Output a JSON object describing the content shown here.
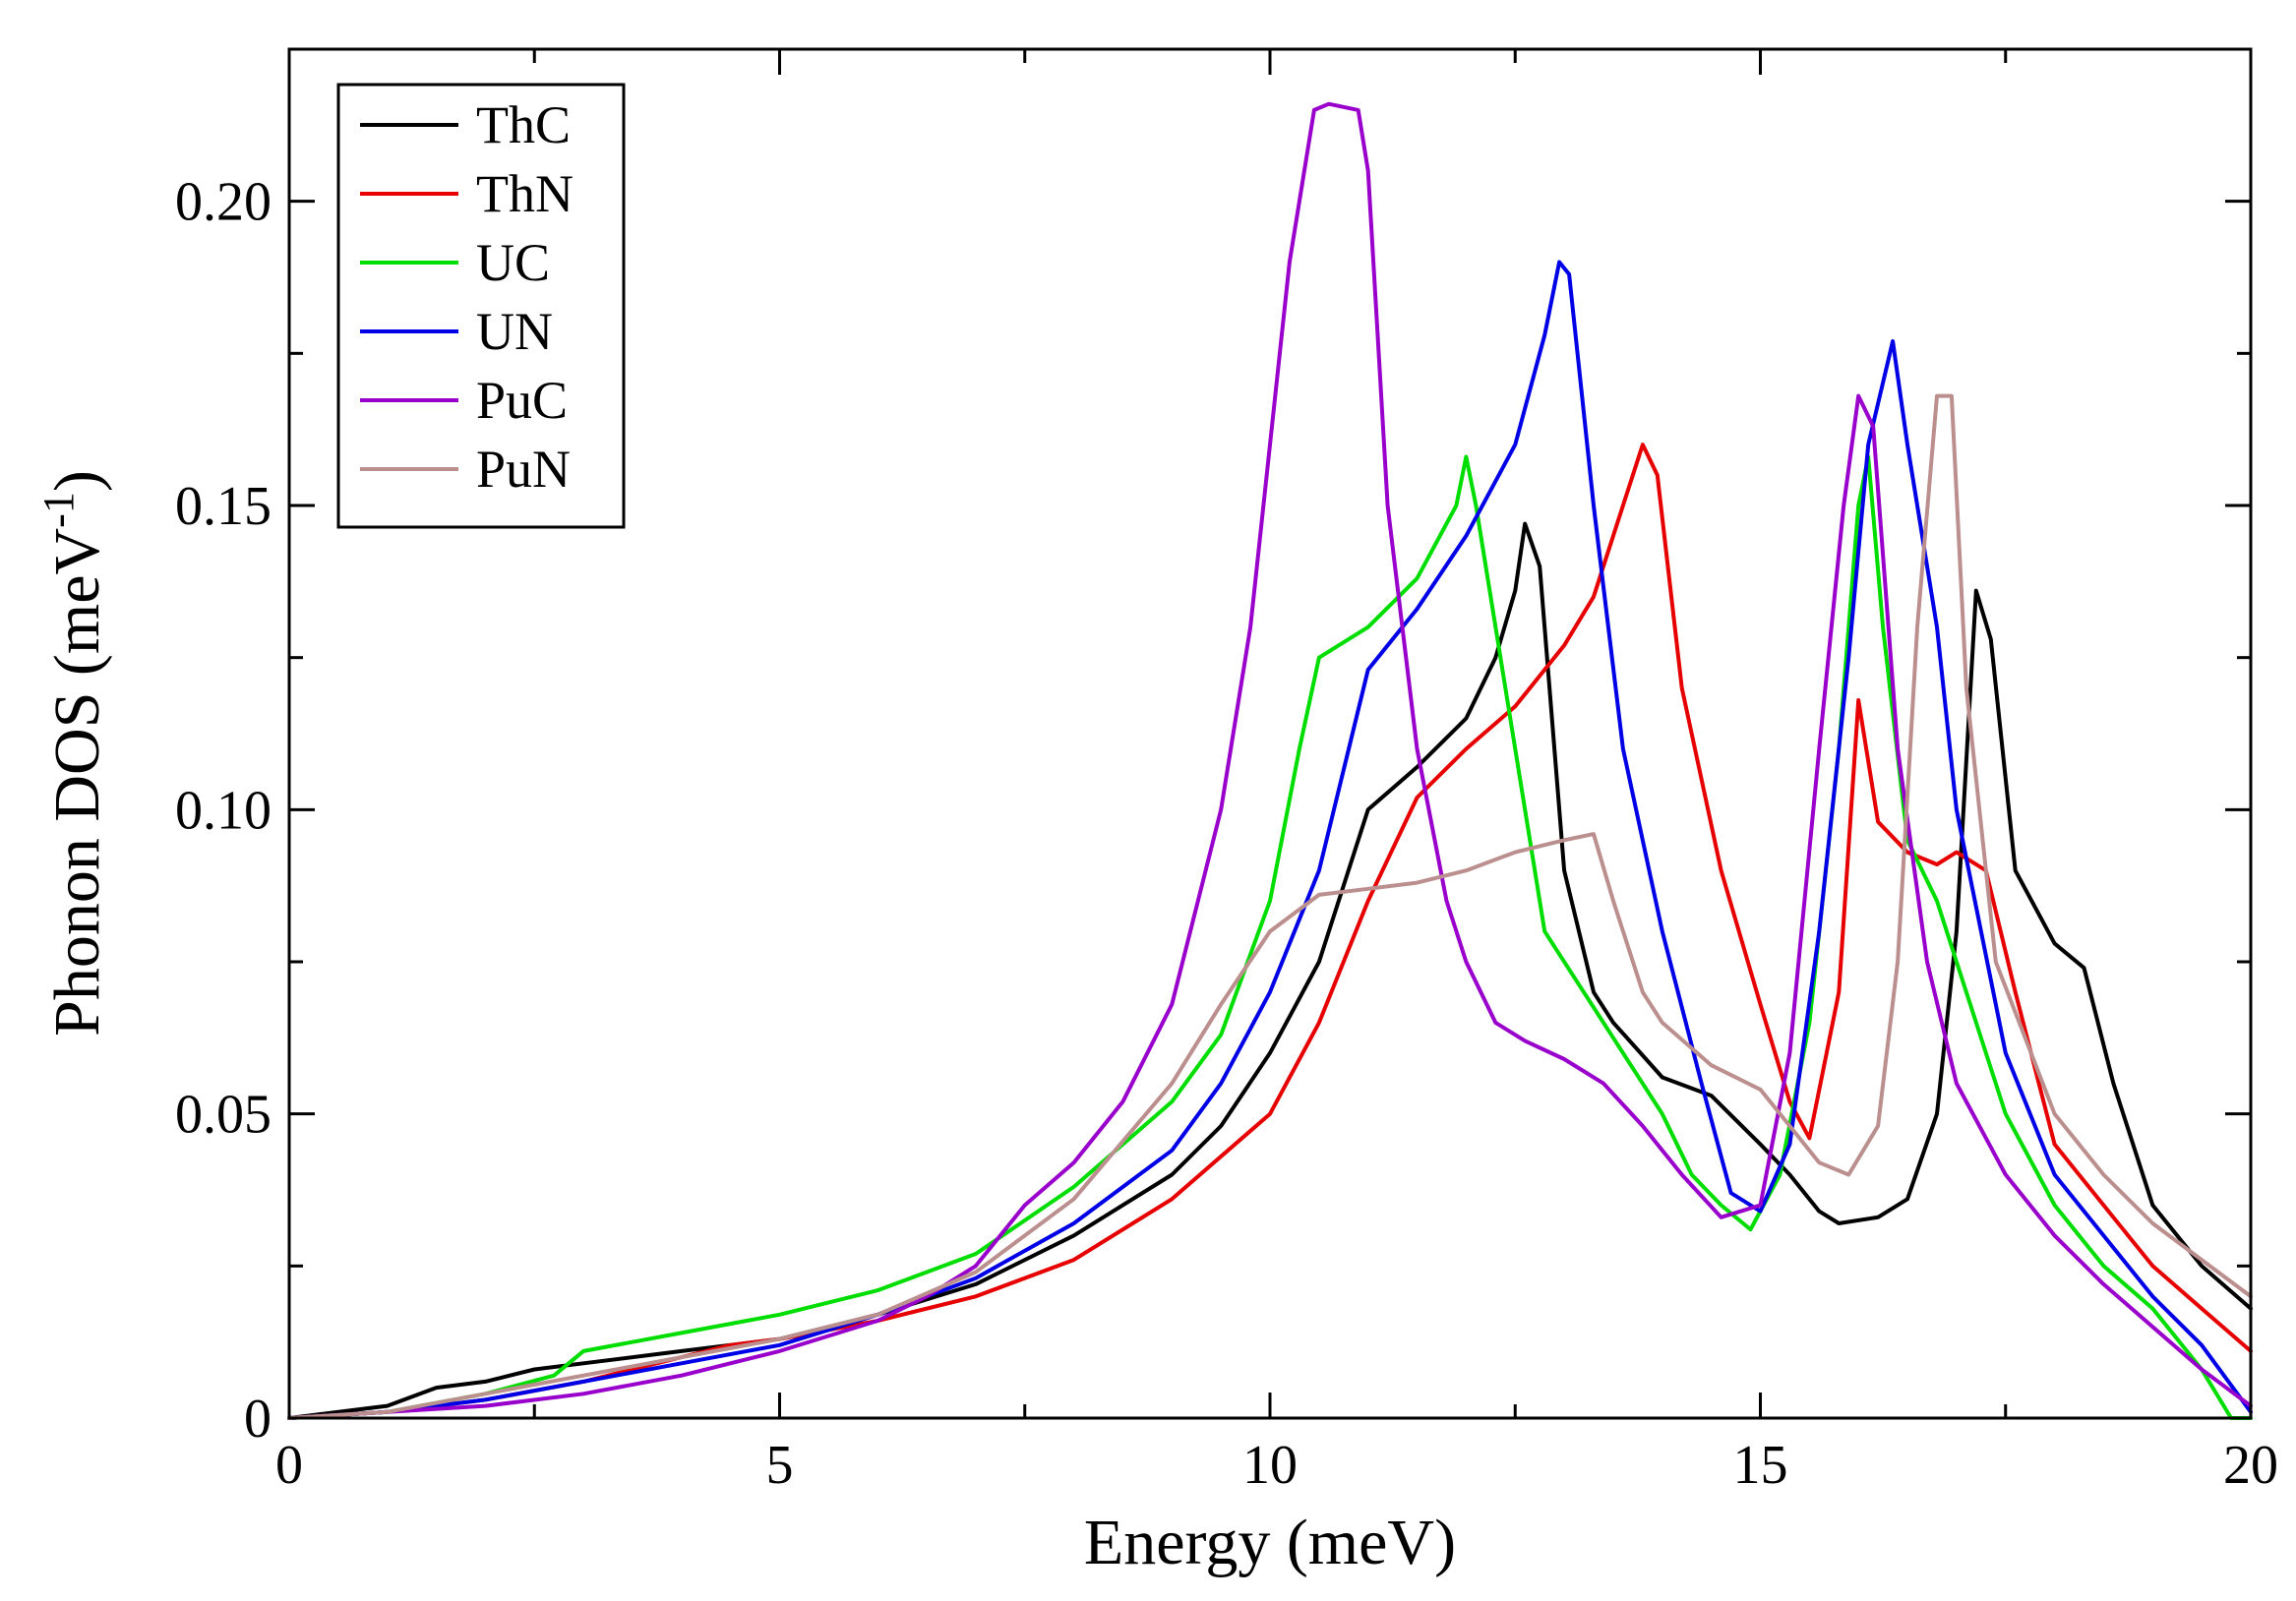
{
  "chart_data": {
    "type": "line",
    "title": "",
    "xlabel": "Energy (meV)",
    "ylabel": {
      "main": "Phonon DOS (meV",
      "superscript": "-1",
      "close": ")"
    },
    "xlim": [
      0,
      20
    ],
    "ylim": [
      0,
      0.225
    ],
    "xticks": [
      {
        "value": 0,
        "label": "0"
      },
      {
        "value": 5,
        "label": "5"
      },
      {
        "value": 10,
        "label": "10"
      },
      {
        "value": 15,
        "label": "15"
      },
      {
        "value": 20,
        "label": "20"
      }
    ],
    "yticks": [
      {
        "value": 0,
        "label": "0"
      },
      {
        "value": 0.05,
        "label": "0.05"
      },
      {
        "value": 0.1,
        "label": "0.10"
      },
      {
        "value": 0.15,
        "label": "0.15"
      },
      {
        "value": 0.2,
        "label": "0.20"
      }
    ],
    "x_minor_step": 2.5,
    "y_minor_step": 0.025,
    "grid": false,
    "legend_position": "top-left",
    "series": [
      {
        "name": "ThC",
        "color": "#000000",
        "points": [
          [
            0,
            0
          ],
          [
            1,
            0.002
          ],
          [
            1.5,
            0.005
          ],
          [
            2,
            0.006
          ],
          [
            2.5,
            0.008
          ],
          [
            3,
            0.009
          ],
          [
            4,
            0.011
          ],
          [
            5,
            0.013
          ],
          [
            6,
            0.017
          ],
          [
            7,
            0.022
          ],
          [
            8,
            0.03
          ],
          [
            9,
            0.04
          ],
          [
            9.5,
            0.048
          ],
          [
            10,
            0.06
          ],
          [
            10.5,
            0.075
          ],
          [
            11,
            0.1
          ],
          [
            11.5,
            0.107
          ],
          [
            12,
            0.115
          ],
          [
            12.3,
            0.125
          ],
          [
            12.5,
            0.136
          ],
          [
            12.6,
            0.147
          ],
          [
            12.75,
            0.14
          ],
          [
            13,
            0.09
          ],
          [
            13.3,
            0.07
          ],
          [
            13.5,
            0.065
          ],
          [
            14,
            0.056
          ],
          [
            14.5,
            0.053
          ],
          [
            15,
            0.045
          ],
          [
            15.3,
            0.04
          ],
          [
            15.6,
            0.034
          ],
          [
            15.8,
            0.032
          ],
          [
            16.2,
            0.033
          ],
          [
            16.5,
            0.036
          ],
          [
            16.8,
            0.05
          ],
          [
            17,
            0.08
          ],
          [
            17.2,
            0.136
          ],
          [
            17.35,
            0.128
          ],
          [
            17.6,
            0.09
          ],
          [
            18,
            0.078
          ],
          [
            18.3,
            0.074
          ],
          [
            18.6,
            0.055
          ],
          [
            19,
            0.035
          ],
          [
            19.5,
            0.025
          ],
          [
            20,
            0.018
          ]
        ]
      },
      {
        "name": "ThN",
        "color": "#e60000",
        "points": [
          [
            0,
            0
          ],
          [
            1,
            0.001
          ],
          [
            2,
            0.003
          ],
          [
            3,
            0.006
          ],
          [
            4,
            0.01
          ],
          [
            4.5,
            0.012
          ],
          [
            5,
            0.013
          ],
          [
            6,
            0.016
          ],
          [
            7,
            0.02
          ],
          [
            8,
            0.026
          ],
          [
            9,
            0.036
          ],
          [
            10,
            0.05
          ],
          [
            10.5,
            0.065
          ],
          [
            11,
            0.085
          ],
          [
            11.5,
            0.102
          ],
          [
            12,
            0.11
          ],
          [
            12.5,
            0.117
          ],
          [
            13,
            0.127
          ],
          [
            13.3,
            0.135
          ],
          [
            13.6,
            0.15
          ],
          [
            13.8,
            0.16
          ],
          [
            13.95,
            0.155
          ],
          [
            14.2,
            0.12
          ],
          [
            14.6,
            0.09
          ],
          [
            15,
            0.068
          ],
          [
            15.3,
            0.052
          ],
          [
            15.5,
            0.046
          ],
          [
            15.8,
            0.07
          ],
          [
            16,
            0.118
          ],
          [
            16.2,
            0.098
          ],
          [
            16.5,
            0.093
          ],
          [
            16.8,
            0.091
          ],
          [
            17,
            0.093
          ],
          [
            17.3,
            0.09
          ],
          [
            17.6,
            0.07
          ],
          [
            18,
            0.045
          ],
          [
            18.5,
            0.035
          ],
          [
            19,
            0.025
          ],
          [
            19.5,
            0.018
          ],
          [
            20,
            0.011
          ]
        ]
      },
      {
        "name": "UC",
        "color": "#00dd00",
        "points": [
          [
            0,
            0
          ],
          [
            1,
            0.001
          ],
          [
            2,
            0.004
          ],
          [
            2.7,
            0.007
          ],
          [
            3,
            0.011
          ],
          [
            4,
            0.014
          ],
          [
            5,
            0.017
          ],
          [
            6,
            0.021
          ],
          [
            7,
            0.027
          ],
          [
            8,
            0.038
          ],
          [
            9,
            0.052
          ],
          [
            9.5,
            0.063
          ],
          [
            10,
            0.085
          ],
          [
            10.3,
            0.11
          ],
          [
            10.5,
            0.125
          ],
          [
            11,
            0.13
          ],
          [
            11.5,
            0.138
          ],
          [
            11.9,
            0.15
          ],
          [
            12,
            0.158
          ],
          [
            12.1,
            0.15
          ],
          [
            12.4,
            0.12
          ],
          [
            12.8,
            0.08
          ],
          [
            13.2,
            0.07
          ],
          [
            13.6,
            0.06
          ],
          [
            14,
            0.05
          ],
          [
            14.3,
            0.04
          ],
          [
            14.6,
            0.035
          ],
          [
            14.9,
            0.031
          ],
          [
            15.2,
            0.04
          ],
          [
            15.5,
            0.065
          ],
          [
            15.8,
            0.11
          ],
          [
            16,
            0.15
          ],
          [
            16.1,
            0.158
          ],
          [
            16.25,
            0.13
          ],
          [
            16.5,
            0.095
          ],
          [
            16.8,
            0.085
          ],
          [
            17,
            0.075
          ],
          [
            17.5,
            0.05
          ],
          [
            18,
            0.035
          ],
          [
            18.5,
            0.025
          ],
          [
            19,
            0.018
          ],
          [
            19.5,
            0.008
          ],
          [
            19.8,
            0
          ],
          [
            20,
            0
          ]
        ]
      },
      {
        "name": "UN",
        "color": "#0000e6",
        "points": [
          [
            0,
            0
          ],
          [
            1,
            0.001
          ],
          [
            2,
            0.003
          ],
          [
            3,
            0.006
          ],
          [
            4,
            0.009
          ],
          [
            5,
            0.012
          ],
          [
            6,
            0.017
          ],
          [
            7,
            0.023
          ],
          [
            8,
            0.032
          ],
          [
            9,
            0.044
          ],
          [
            9.5,
            0.055
          ],
          [
            10,
            0.07
          ],
          [
            10.5,
            0.09
          ],
          [
            11,
            0.123
          ],
          [
            11.5,
            0.133
          ],
          [
            12,
            0.145
          ],
          [
            12.5,
            0.16
          ],
          [
            12.8,
            0.178
          ],
          [
            12.95,
            0.19
          ],
          [
            13.05,
            0.188
          ],
          [
            13.3,
            0.15
          ],
          [
            13.6,
            0.11
          ],
          [
            14,
            0.08
          ],
          [
            14.4,
            0.055
          ],
          [
            14.7,
            0.037
          ],
          [
            15,
            0.034
          ],
          [
            15.3,
            0.045
          ],
          [
            15.6,
            0.08
          ],
          [
            15.9,
            0.125
          ],
          [
            16.1,
            0.16
          ],
          [
            16.35,
            0.177
          ],
          [
            16.5,
            0.16
          ],
          [
            16.8,
            0.13
          ],
          [
            17,
            0.1
          ],
          [
            17.5,
            0.06
          ],
          [
            18,
            0.04
          ],
          [
            18.5,
            0.03
          ],
          [
            19,
            0.02
          ],
          [
            19.5,
            0.012
          ],
          [
            20,
            0.001
          ]
        ]
      },
      {
        "name": "PuC",
        "color": "#9900cc",
        "points": [
          [
            0,
            0
          ],
          [
            1,
            0.001
          ],
          [
            2,
            0.002
          ],
          [
            3,
            0.004
          ],
          [
            4,
            0.007
          ],
          [
            5,
            0.011
          ],
          [
            6,
            0.016
          ],
          [
            6.5,
            0.02
          ],
          [
            7,
            0.025
          ],
          [
            7.5,
            0.035
          ],
          [
            8,
            0.042
          ],
          [
            8.5,
            0.052
          ],
          [
            9,
            0.068
          ],
          [
            9.5,
            0.1
          ],
          [
            9.8,
            0.13
          ],
          [
            10,
            0.16
          ],
          [
            10.2,
            0.19
          ],
          [
            10.45,
            0.215
          ],
          [
            10.6,
            0.216
          ],
          [
            10.9,
            0.215
          ],
          [
            11,
            0.205
          ],
          [
            11.2,
            0.15
          ],
          [
            11.5,
            0.11
          ],
          [
            11.8,
            0.085
          ],
          [
            12,
            0.075
          ],
          [
            12.3,
            0.065
          ],
          [
            12.6,
            0.062
          ],
          [
            13,
            0.059
          ],
          [
            13.4,
            0.055
          ],
          [
            13.8,
            0.048
          ],
          [
            14.2,
            0.04
          ],
          [
            14.6,
            0.033
          ],
          [
            15,
            0.035
          ],
          [
            15.3,
            0.06
          ],
          [
            15.6,
            0.11
          ],
          [
            15.85,
            0.15
          ],
          [
            16,
            0.168
          ],
          [
            16.15,
            0.163
          ],
          [
            16.4,
            0.11
          ],
          [
            16.7,
            0.075
          ],
          [
            17,
            0.055
          ],
          [
            17.5,
            0.04
          ],
          [
            18,
            0.03
          ],
          [
            18.5,
            0.022
          ],
          [
            19,
            0.015
          ],
          [
            19.5,
            0.008
          ],
          [
            20,
            0.002
          ]
        ]
      },
      {
        "name": "PuN",
        "color": "#bc8f8f",
        "points": [
          [
            0,
            0
          ],
          [
            1,
            0.001
          ],
          [
            2,
            0.004
          ],
          [
            3,
            0.007
          ],
          [
            4,
            0.01
          ],
          [
            5,
            0.013
          ],
          [
            6,
            0.017
          ],
          [
            7,
            0.024
          ],
          [
            8,
            0.036
          ],
          [
            9,
            0.055
          ],
          [
            9.5,
            0.068
          ],
          [
            10,
            0.08
          ],
          [
            10.5,
            0.086
          ],
          [
            11,
            0.087
          ],
          [
            11.5,
            0.088
          ],
          [
            12,
            0.09
          ],
          [
            12.5,
            0.093
          ],
          [
            13,
            0.095
          ],
          [
            13.3,
            0.096
          ],
          [
            13.5,
            0.085
          ],
          [
            13.8,
            0.07
          ],
          [
            14,
            0.065
          ],
          [
            14.5,
            0.058
          ],
          [
            15,
            0.054
          ],
          [
            15.3,
            0.048
          ],
          [
            15.6,
            0.042
          ],
          [
            15.9,
            0.04
          ],
          [
            16.2,
            0.048
          ],
          [
            16.4,
            0.075
          ],
          [
            16.6,
            0.13
          ],
          [
            16.8,
            0.168
          ],
          [
            16.95,
            0.168
          ],
          [
            17.1,
            0.12
          ],
          [
            17.4,
            0.075
          ],
          [
            18,
            0.05
          ],
          [
            18.5,
            0.04
          ],
          [
            19,
            0.032
          ],
          [
            19.5,
            0.026
          ],
          [
            20,
            0.02
          ]
        ]
      }
    ]
  }
}
